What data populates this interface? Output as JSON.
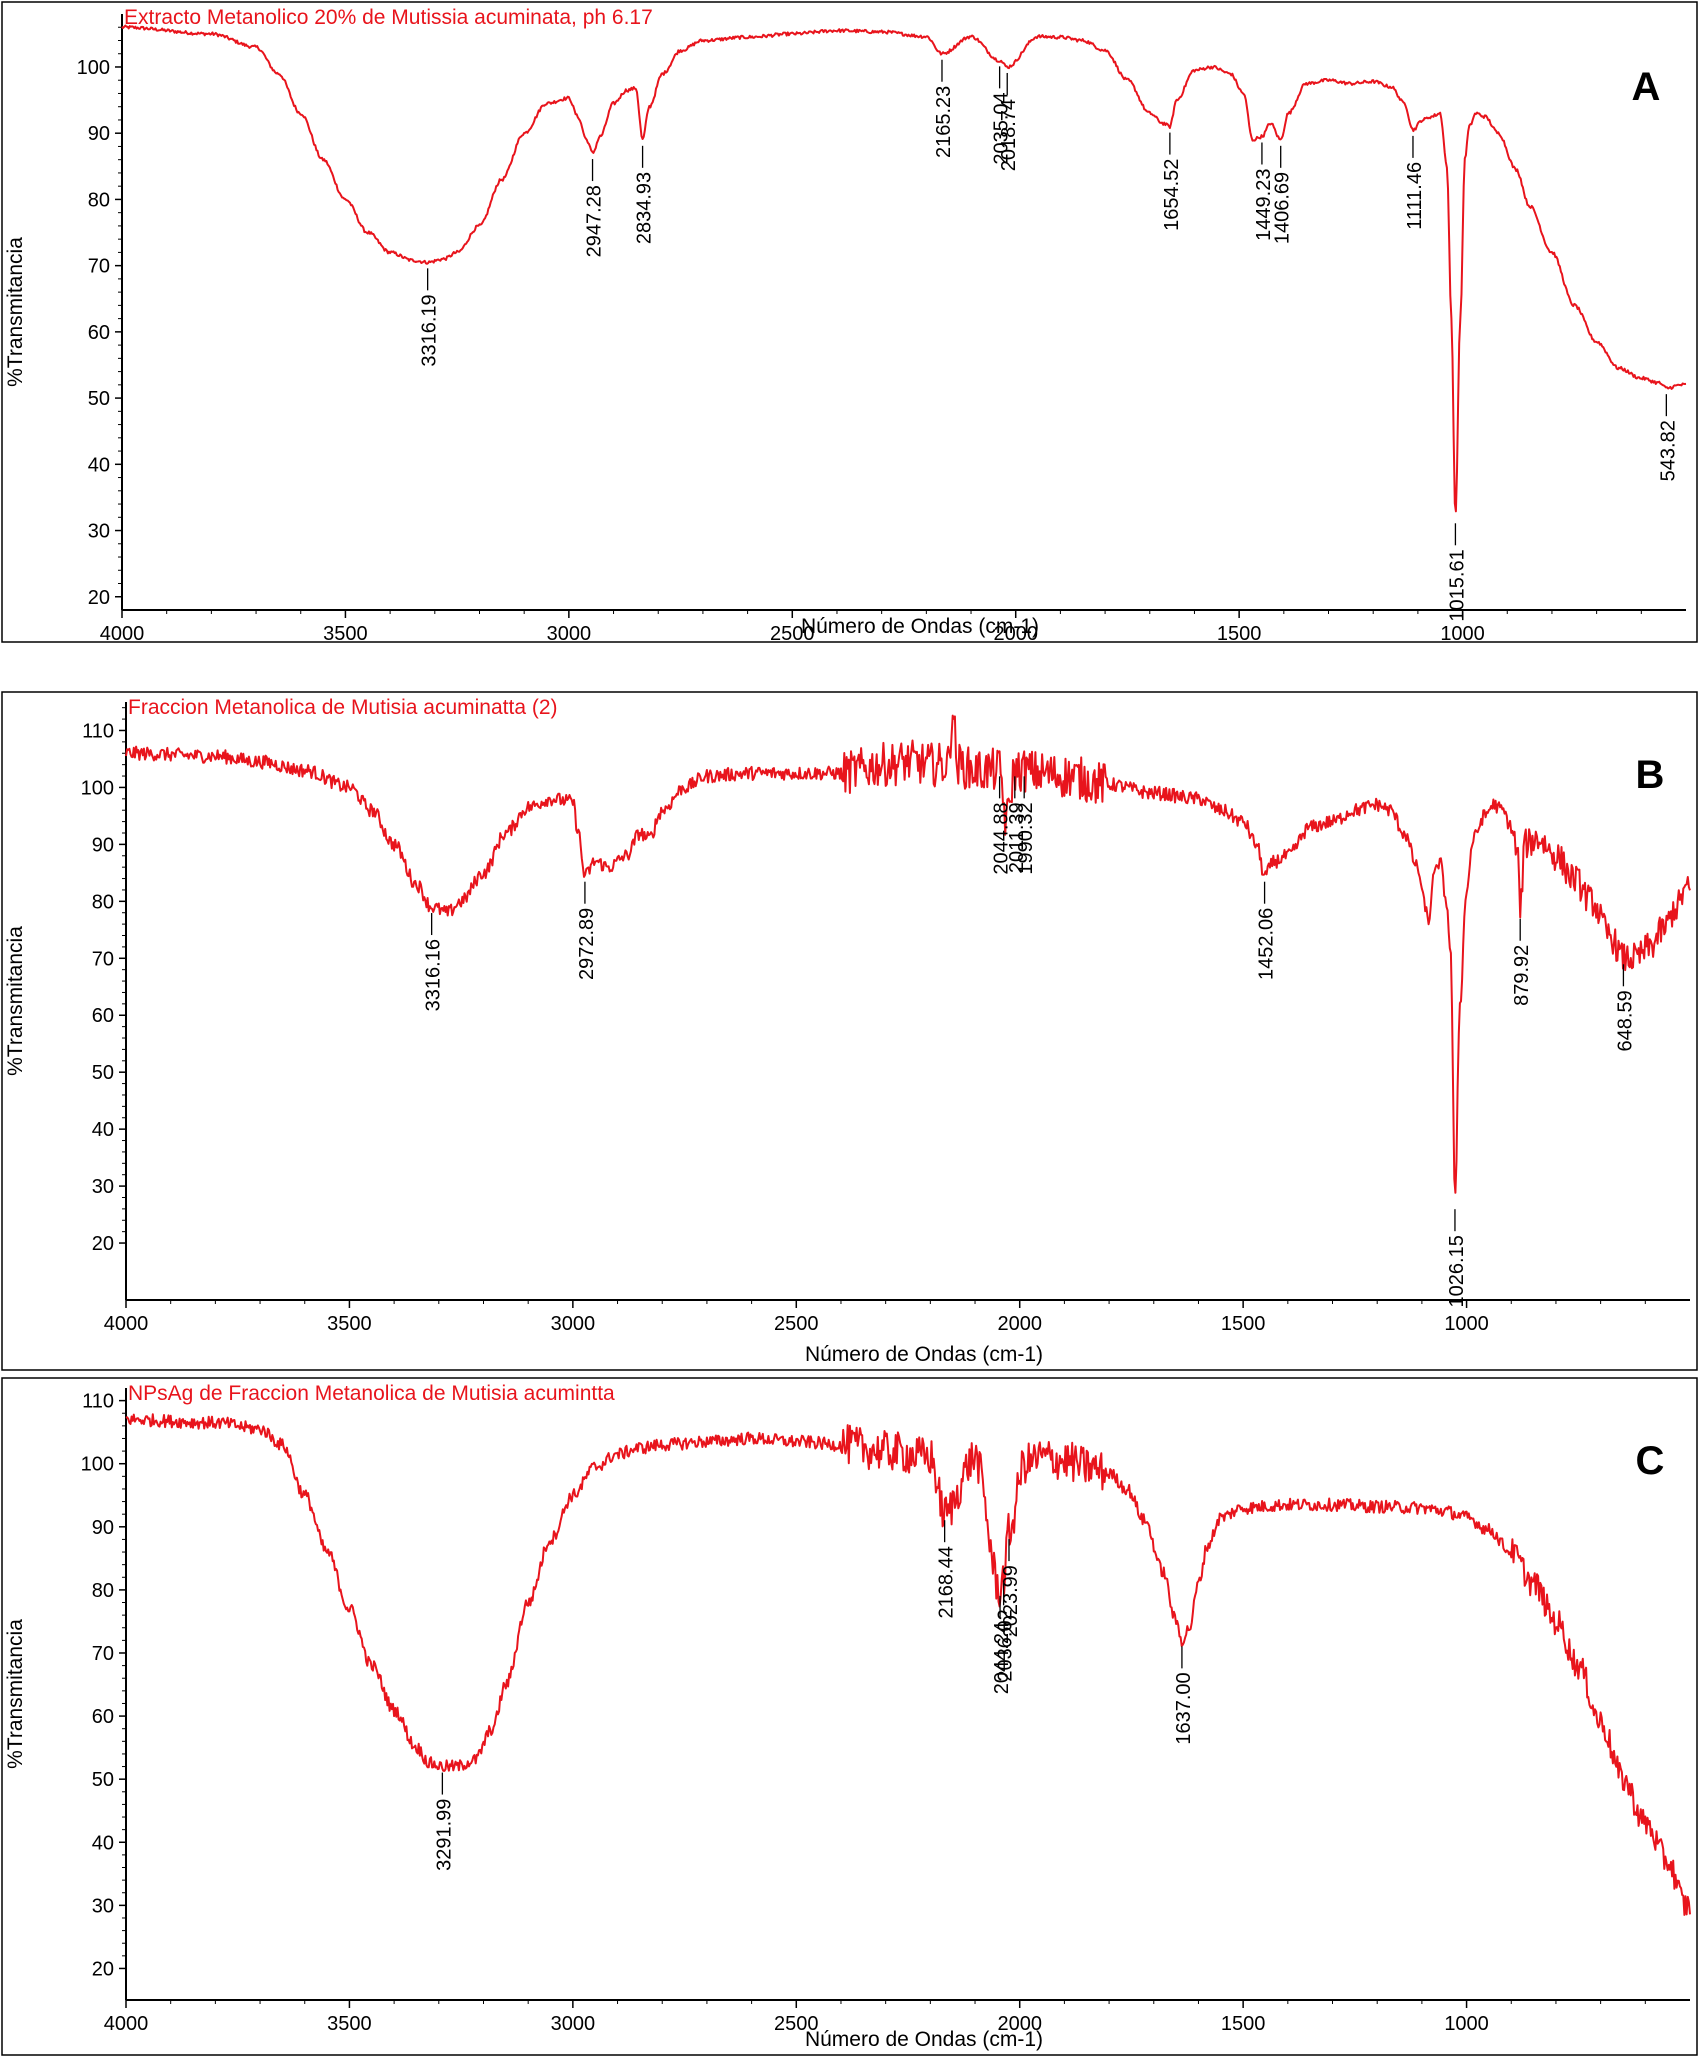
{
  "colors": {
    "spectrum": "#e8141c",
    "frame": "#000000",
    "background": "#ffffff"
  },
  "chart_data": [
    {
      "type": "line",
      "panel_letter": "A",
      "title": "Extracto Metanolico 20% de Mutissia acuminata, ph 6.17",
      "xlabel": "Número de Ondas (cm-1)",
      "ylabel": "%Transmitancia",
      "xlim": [
        4000,
        500
      ],
      "ylim": [
        18,
        108
      ],
      "xticks": [
        4000,
        3500,
        3000,
        2500,
        2000,
        1500,
        1000
      ],
      "yticks": [
        20,
        30,
        40,
        50,
        60,
        70,
        80,
        90,
        100
      ],
      "grid": false,
      "noise": 0.25,
      "series": [
        {
          "x": [
            4000,
            3800,
            3700,
            3650,
            3600,
            3550,
            3500,
            3450,
            3400,
            3350,
            3316,
            3280,
            3250,
            3200,
            3150,
            3100,
            3050,
            3000,
            2980,
            2960,
            2947,
            2930,
            2900,
            2870,
            2850,
            2835,
            2820,
            2790,
            2750,
            2700,
            2600,
            2500,
            2400,
            2300,
            2200,
            2165,
            2100,
            2036,
            2019,
            1950,
            1900,
            1850,
            1800,
            1750,
            1700,
            1670,
            1655,
            1640,
            1600,
            1560,
            1520,
            1490,
            1470,
            1449,
            1430,
            1407,
            1390,
            1350,
            1300,
            1250,
            1200,
            1160,
            1130,
            1111,
            1090,
            1070,
            1050,
            1035,
            1025,
            1016,
            1005,
            995,
            985,
            970,
            950,
            920,
            880,
            850,
            800,
            750,
            700,
            650,
            600,
            560,
            544,
            510
          ],
          "values": [
            106,
            105,
            103,
            99,
            93,
            86,
            80,
            75,
            72,
            70.8,
            70.5,
            71,
            72,
            76,
            83,
            90,
            94.5,
            95.3,
            92.5,
            89,
            87,
            89.5,
            94.5,
            96.5,
            96.8,
            89,
            94,
            99,
            102.5,
            104,
            104.5,
            105,
            105.5,
            105.3,
            104.6,
            102,
            104.6,
            101,
            100,
            104.6,
            104.5,
            104,
            102.5,
            98,
            93,
            91.5,
            91,
            95,
            99.5,
            100,
            99,
            96,
            89,
            89.5,
            91.5,
            89,
            93,
            97.5,
            98,
            97.5,
            97.8,
            97,
            94.5,
            90.5,
            92,
            92.5,
            93,
            85,
            62,
            32,
            62,
            86,
            91,
            93,
            92.5,
            90,
            84.5,
            79,
            72,
            64,
            58.5,
            54.5,
            53,
            52.3,
            51.5,
            52
          ]
        }
      ],
      "annotations": [
        {
          "x": 3316,
          "label": "3316.19"
        },
        {
          "x": 2947,
          "label": "2947.28"
        },
        {
          "x": 2835,
          "label": "2834.93"
        },
        {
          "x": 2165,
          "label": "2165.23"
        },
        {
          "x": 2036,
          "label": "2035.04"
        },
        {
          "x": 2019,
          "label": "2018.74"
        },
        {
          "x": 1655,
          "label": "1654.52"
        },
        {
          "x": 1449,
          "label": "1449.23"
        },
        {
          "x": 1407,
          "label": "1406.69"
        },
        {
          "x": 1111,
          "label": "1111.46"
        },
        {
          "x": 1016,
          "label": "1015.61"
        },
        {
          "x": 544,
          "label": "543.82"
        }
      ]
    },
    {
      "type": "line",
      "panel_letter": "B",
      "title": "Fraccion Metanolica de Mutisia acuminatta (2)",
      "xlabel": "Número de Ondas (cm-1)",
      "ylabel": "%Transmitancia",
      "xlim": [
        4000,
        500
      ],
      "ylim": [
        10,
        115
      ],
      "xticks": [
        4000,
        3500,
        3000,
        2500,
        2000,
        1500,
        1000
      ],
      "yticks": [
        20,
        30,
        40,
        50,
        60,
        70,
        80,
        90,
        100,
        110
      ],
      "grid": false,
      "noise": 1.2,
      "series": [
        {
          "x": [
            4000,
            3800,
            3700,
            3600,
            3500,
            3450,
            3400,
            3350,
            3316,
            3280,
            3250,
            3200,
            3150,
            3100,
            3050,
            3000,
            2990,
            2973,
            2950,
            2920,
            2880,
            2850,
            2830,
            2800,
            2750,
            2700,
            2600,
            2500,
            2400,
            2300,
            2250,
            2200,
            2160,
            2150,
            2140,
            2100,
            2045,
            2030,
            2011,
            1990,
            1950,
            1900,
            1800,
            1700,
            1600,
            1550,
            1500,
            1470,
            1452,
            1430,
            1400,
            1350,
            1300,
            1250,
            1200,
            1170,
            1140,
            1110,
            1095,
            1085,
            1075,
            1060,
            1045,
            1035,
            1026,
            1015,
            1000,
            985,
            960,
            940,
            920,
            900,
            885,
            880,
            870,
            840,
            800,
            760,
            720,
            680,
            649,
            620,
            590,
            560,
            530,
            510
          ],
          "values": [
            106,
            105.5,
            104.5,
            103,
            100,
            96,
            90,
            83,
            79,
            78,
            80,
            85,
            92,
            96.5,
            98,
            97.5,
            93,
            84.5,
            87,
            86,
            88,
            92,
            91,
            96,
            100,
            102,
            102.5,
            102.5,
            102.5,
            104,
            104.5,
            104,
            104,
            114,
            104,
            103,
            103,
            94,
            103,
            103,
            102.5,
            102,
            100.5,
            99,
            98,
            96,
            94,
            90,
            84.5,
            87,
            88,
            93,
            94,
            96,
            97,
            96,
            92,
            86,
            80,
            76,
            84,
            87,
            80,
            70,
            27,
            62,
            82,
            91,
            95,
            97,
            96,
            93,
            88,
            78,
            90,
            91,
            88,
            84,
            80,
            74,
            70,
            70,
            72,
            75,
            79,
            82
          ]
        }
      ],
      "annotations": [
        {
          "x": 3316,
          "label": "3316.16"
        },
        {
          "x": 2973,
          "label": "2972.89"
        },
        {
          "x": 2045,
          "label": "2044.88"
        },
        {
          "x": 2011,
          "label": "2011.39"
        },
        {
          "x": 1990,
          "label": "1990.32"
        },
        {
          "x": 1452,
          "label": "1452.06"
        },
        {
          "x": 1026,
          "label": "1026.15"
        },
        {
          "x": 880,
          "label": "879.92"
        },
        {
          "x": 649,
          "label": "648.59"
        }
      ]
    },
    {
      "type": "line",
      "panel_letter": "C",
      "title": "NPsAg de Fraccion Metanolica de Mutisia acumintta",
      "xlabel": "Número de Ondas (cm-1)",
      "ylabel": "%Transmitancia",
      "xlim": [
        4000,
        500
      ],
      "ylim": [
        15,
        112
      ],
      "xticks": [
        4000,
        3500,
        3000,
        2500,
        2000,
        1500,
        1000
      ],
      "yticks": [
        20,
        30,
        40,
        50,
        60,
        70,
        80,
        90,
        100,
        110
      ],
      "grid": false,
      "noise": 1.0,
      "series": [
        {
          "x": [
            4000,
            3800,
            3700,
            3650,
            3600,
            3550,
            3500,
            3450,
            3400,
            3350,
            3320,
            3292,
            3260,
            3220,
            3180,
            3150,
            3100,
            3050,
            3000,
            2950,
            2900,
            2850,
            2800,
            2700,
            2600,
            2500,
            2400,
            2300,
            2200,
            2168,
            2100,
            2044,
            2036,
            2024,
            1990,
            1950,
            1900,
            1850,
            1800,
            1760,
            1720,
            1680,
            1650,
            1637,
            1620,
            1600,
            1580,
            1550,
            1500,
            1400,
            1300,
            1200,
            1100,
            1050,
            1000,
            950,
            900,
            850,
            800,
            750,
            700,
            650,
            600,
            550,
            510
          ],
          "values": [
            107,
            106.5,
            105.5,
            103,
            95,
            86,
            77,
            68,
            61,
            55,
            52.5,
            52,
            52,
            53,
            58,
            65,
            78,
            88,
            95,
            99.5,
            101.5,
            102.5,
            103,
            103.5,
            104,
            103.5,
            103,
            102,
            101,
            92,
            101,
            80,
            82,
            89,
            100,
            101,
            100.5,
            99.5,
            98.5,
            96,
            91,
            83,
            75,
            72,
            74,
            81,
            87,
            91.5,
            93,
            93.5,
            93.5,
            93.2,
            93,
            92.5,
            91.5,
            89.5,
            86,
            81,
            75,
            68,
            59,
            50,
            43,
            37,
            30
          ]
        }
      ],
      "annotations": [
        {
          "x": 3292,
          "label": "3291.99"
        },
        {
          "x": 2168,
          "label": "2168.44"
        },
        {
          "x": 2044,
          "label": "2044.24"
        },
        {
          "x": 2036,
          "label": "2036.02"
        },
        {
          "x": 2024,
          "label": "2023.99"
        },
        {
          "x": 1637,
          "label": "1637.00"
        }
      ]
    }
  ]
}
